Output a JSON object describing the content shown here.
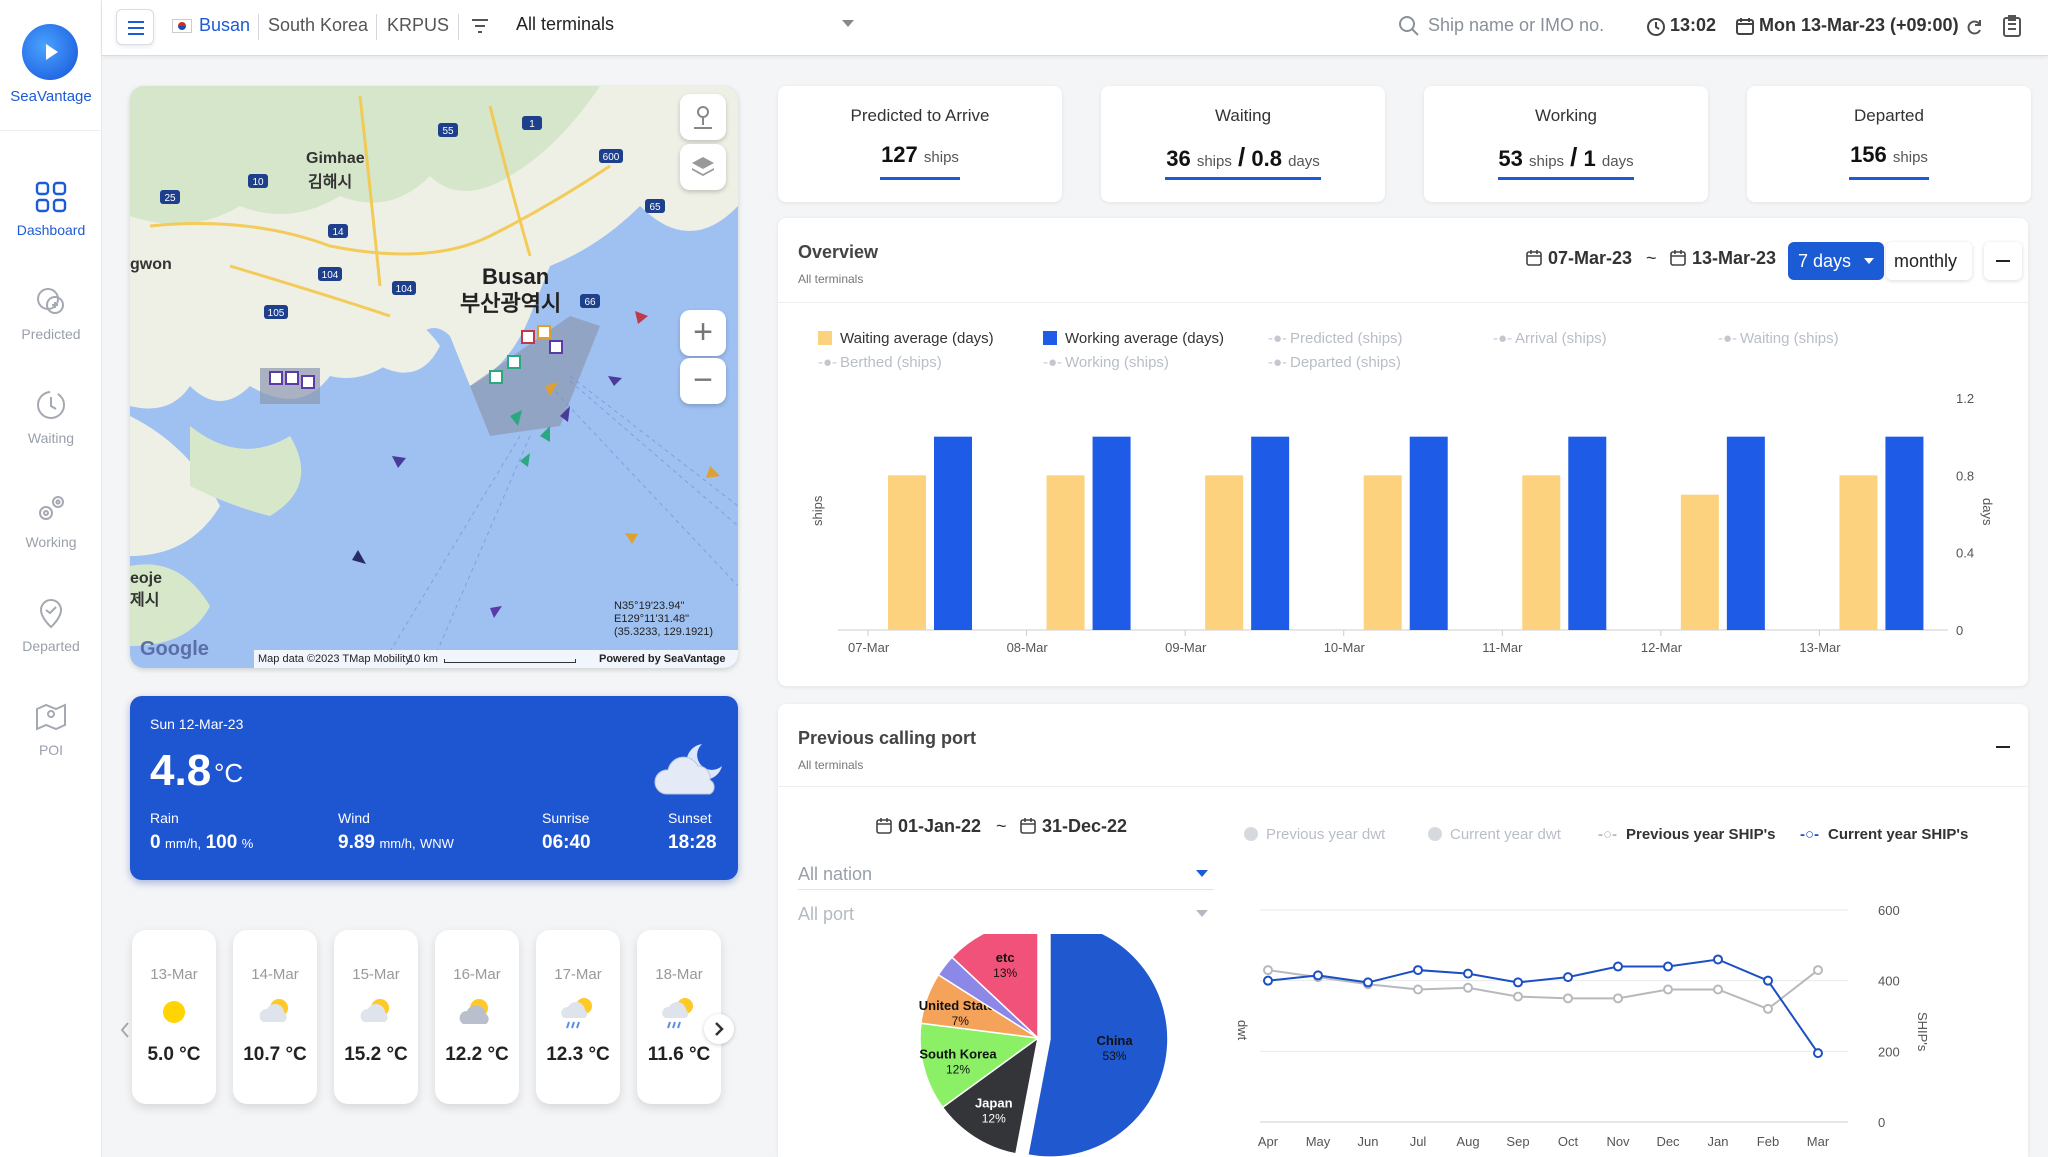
{
  "app": {
    "name": "SeaVantage"
  },
  "nav": [
    {
      "label": "Dashboard",
      "icon": "grid-icon",
      "active": true
    },
    {
      "label": "Predicted",
      "icon": "predicted-icon"
    },
    {
      "label": "Waiting",
      "icon": "clock-icon"
    },
    {
      "label": "Working",
      "icon": "gears-icon"
    },
    {
      "label": "Departed",
      "icon": "location-pin-icon"
    },
    {
      "label": "POI",
      "icon": "map-pin-icon"
    }
  ],
  "topbar": {
    "port": "Busan",
    "country": "South Korea",
    "code": "KRPUS",
    "terminal": "All terminals",
    "search_placeholder": "Ship name or IMO no.",
    "time": "13:02",
    "date": "Mon 13-Mar-23 (+09:00)"
  },
  "map": {
    "labels": {
      "city_en": "Busan",
      "city_ko": "부산광역시",
      "gimhae_en": "Gimhae",
      "gimhae_ko": "김해시",
      "changwon": "gwon",
      "geoje_en": "eoje",
      "geoje_ko": "제시"
    },
    "coords_line1": "N35°19'23.94\"",
    "coords_line2": "E129°11'31.48\"",
    "coords_line3": "(35.3233, 129.1921)",
    "attribution": "Map data ©2023 TMap Mobility",
    "scale": "10 km",
    "powered": "Powered by SeaVantage",
    "google": "Google",
    "road_numbers": [
      "55",
      "1",
      "600",
      "10",
      "14",
      "25",
      "65",
      "104",
      "104",
      "105",
      "66"
    ]
  },
  "weather": {
    "date": "Sun 12-Mar-23",
    "temp": "4.8",
    "temp_unit": "°C",
    "rain_label": "Rain",
    "rain_value": "0",
    "rain_unit": "mm/h,",
    "rain_pct": "100",
    "rain_pct_unit": "%",
    "wind_label": "Wind",
    "wind_value": "9.89",
    "wind_unit": "mm/h,",
    "wind_dir": "WNW",
    "sunrise_label": "Sunrise",
    "sunrise": "06:40",
    "sunset_label": "Sunset",
    "sunset": "18:28"
  },
  "forecast": [
    {
      "date": "13-Mar",
      "temp": "5.0 °C",
      "icon": "sun-icon"
    },
    {
      "date": "14-Mar",
      "temp": "10.7 °C",
      "icon": "sun-cloud-icon"
    },
    {
      "date": "15-Mar",
      "temp": "15.2 °C",
      "icon": "sun-cloud-icon"
    },
    {
      "date": "16-Mar",
      "temp": "12.2 °C",
      "icon": "cloud-sun-icon"
    },
    {
      "date": "17-Mar",
      "temp": "12.3 °C",
      "icon": "rain-sun-icon"
    },
    {
      "date": "18-Mar",
      "temp": "11.6 °C",
      "icon": "rain-sun-icon"
    }
  ],
  "stats": [
    {
      "title": "Predicted to Arrive",
      "v1": "127",
      "u1": "ships",
      "v2": "",
      "u2": ""
    },
    {
      "title": "Waiting",
      "v1": "36",
      "u1": "ships",
      "sep": "/",
      "v2": "0.8",
      "u2": "days"
    },
    {
      "title": "Working",
      "v1": "53",
      "u1": "ships",
      "sep": "/",
      "v2": "1",
      "u2": "days"
    },
    {
      "title": "Departed",
      "v1": "156",
      "u1": "ships",
      "v2": "",
      "u2": ""
    }
  ],
  "overview": {
    "title": "Overview",
    "subtitle": "All terminals",
    "date_from": "07-Mar-23",
    "tilde": "~",
    "date_to": "13-Mar-23",
    "range_btn": "7 days",
    "monthly_btn": "monthly",
    "legend": [
      {
        "label": "Waiting average (days)",
        "color": "#fcd27e",
        "on": true
      },
      {
        "label": "Working average (days)",
        "color": "#1e5be6",
        "on": true
      },
      {
        "label": "Predicted (ships)",
        "on": false
      },
      {
        "label": "Arrival (ships)",
        "on": false
      },
      {
        "label": "Waiting (ships)",
        "on": false
      },
      {
        "label": "Berthed (ships)",
        "on": false
      },
      {
        "label": "Working (ships)",
        "on": false
      },
      {
        "label": "Departed (ships)",
        "on": false
      }
    ]
  },
  "previous": {
    "title": "Previous calling port",
    "subtitle": "All terminals",
    "date_from": "01-Jan-22",
    "tilde": "~",
    "date_to": "31-Dec-22",
    "nation_placeholder": "All nation",
    "port_placeholder": "All port",
    "legend": [
      {
        "label": "Previous year dwt",
        "on": false
      },
      {
        "label": "Current year dwt",
        "on": false
      },
      {
        "label": "Previous year SHIP's",
        "on": true,
        "color": "#b7b9bd"
      },
      {
        "label": "Current year SHIP's",
        "on": true,
        "color": "#1c4fc4"
      }
    ]
  },
  "chart_data": [
    {
      "type": "bar",
      "categories": [
        "07-Mar",
        "08-Mar",
        "09-Mar",
        "10-Mar",
        "11-Mar",
        "12-Mar",
        "13-Mar"
      ],
      "series": [
        {
          "name": "Waiting average (days)",
          "values": [
            0.8,
            0.8,
            0.8,
            0.8,
            0.8,
            0.7,
            0.8
          ],
          "color": "#fcd27e"
        },
        {
          "name": "Working average (days)",
          "values": [
            1,
            1,
            1,
            1,
            1,
            1,
            1
          ],
          "color": "#1e5be6"
        }
      ],
      "ylabel_left": "ships",
      "ylabel_right": "days",
      "yticks_right": [
        "0",
        "0.4",
        "0.8",
        "1.2"
      ],
      "ylim": [
        0,
        1.2
      ]
    },
    {
      "type": "pie",
      "slices": [
        {
          "label": "China",
          "pct": "53%",
          "value": 53,
          "color": "#1f58cf"
        },
        {
          "label": "Japan",
          "pct": "12%",
          "value": 12,
          "color": "#333538"
        },
        {
          "label": "South Korea",
          "pct": "12%",
          "value": 12,
          "color": "#8cf067"
        },
        {
          "label": "United States",
          "pct": "7%",
          "value": 7,
          "color": "#f5a35a"
        },
        {
          "label": "",
          "pct": "",
          "value": 3,
          "color": "#8b88e8"
        },
        {
          "label": "etc",
          "pct": "13%",
          "value": 13,
          "color": "#f0527a"
        }
      ]
    },
    {
      "type": "line",
      "categories": [
        "Apr",
        "May",
        "Jun",
        "Jul",
        "Aug",
        "Sep",
        "Oct",
        "Nov",
        "Dec",
        "Jan",
        "Feb",
        "Mar"
      ],
      "series": [
        {
          "name": "Previous year SHIP's",
          "values": [
            430,
            410,
            390,
            375,
            380,
            355,
            350,
            350,
            375,
            375,
            320,
            430
          ],
          "color": "#b7b9bd"
        },
        {
          "name": "Current year SHIP's",
          "values": [
            400,
            415,
            395,
            430,
            420,
            395,
            410,
            440,
            440,
            460,
            400,
            195
          ],
          "color": "#1c4fc4"
        }
      ],
      "ylabel_left": "dwt",
      "ylabel_right": "SHIP's",
      "yticks_right": [
        "0",
        "200",
        "400",
        "600"
      ],
      "ylim": [
        0,
        600
      ]
    }
  ]
}
